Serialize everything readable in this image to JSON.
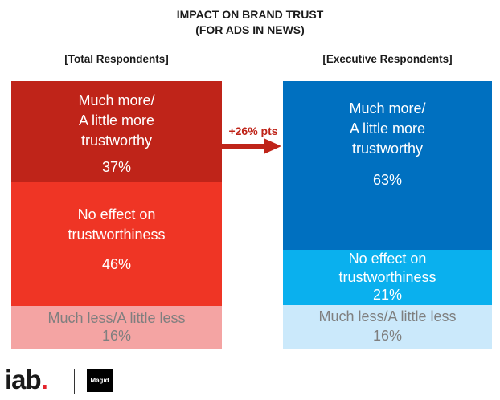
{
  "chart_data": {
    "type": "stacked-bar",
    "title": "IMPACT ON BRAND TRUST",
    "subtitle": "(FOR ADS IN NEWS)",
    "categories": [
      "[Total Respondents]",
      "[Executive Respondents]"
    ],
    "series": [
      {
        "name_lines": [
          "Much more/",
          "A little more",
          "trustworthy"
        ],
        "values": [
          37,
          63
        ],
        "labels": [
          "37%",
          "63%"
        ],
        "colors": [
          "#bf2419",
          "#0070c0"
        ]
      },
      {
        "name_lines": [
          "No effect on",
          "trustworthiness"
        ],
        "values": [
          46,
          21
        ],
        "labels": [
          "46%",
          "21%"
        ],
        "colors": [
          "#ef3525",
          "#0ab0ee"
        ]
      },
      {
        "name_lines": [
          "Much less/A little less"
        ],
        "values": [
          16,
          16
        ],
        "labels": [
          "16%",
          "16%"
        ],
        "colors": [
          "#f4a4a3",
          "#cbe9fb"
        ]
      }
    ],
    "annotation": "+26% pts"
  },
  "logos": {
    "iab_text": "iab",
    "iab_dot": ".",
    "magid_text": "Magid"
  }
}
